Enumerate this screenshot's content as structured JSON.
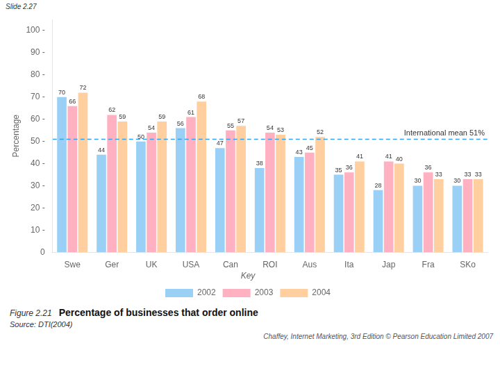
{
  "chart_data": {
    "type": "bar",
    "title": "Percentage of businesses that order online",
    "figure_label": "Figure 2.21",
    "source": "Source: DTI(2004)",
    "slide_label": "Slide 2.27",
    "footer": "Chaffey, Internet Marketing, 3rd Edition © Pearson Education Limited 2007",
    "categories": [
      "Swe",
      "Ger",
      "UK",
      "USA",
      "Can",
      "ROI",
      "Aus",
      "Ita",
      "Jap",
      "Fra",
      "SKo"
    ],
    "series": [
      {
        "name": "2002",
        "values": [
          70,
          44,
          50,
          56,
          47,
          38,
          43,
          35,
          28,
          30,
          30
        ]
      },
      {
        "name": "2003",
        "values": [
          66,
          62,
          54,
          61,
          55,
          54,
          45,
          36,
          41,
          36,
          33
        ]
      },
      {
        "name": "2004",
        "values": [
          72,
          59,
          59,
          68,
          57,
          53,
          52,
          41,
          40,
          33,
          33
        ]
      }
    ],
    "ylabel": "Percentage",
    "ylim": [
      0,
      105
    ],
    "yticks": [
      0,
      {
        "value": 10,
        "label": "10 -"
      },
      {
        "value": 20,
        "label": "20 -"
      },
      {
        "value": 30,
        "label": "30 -"
      },
      {
        "value": 40,
        "label": "40 -"
      },
      {
        "value": 50,
        "label": "50 -"
      },
      {
        "value": 60,
        "label": "60 -"
      },
      {
        "value": 70,
        "label": "70 -"
      },
      {
        "value": 80,
        "label": "80 -"
      },
      {
        "value": 90,
        "label": "90 -"
      },
      {
        "value": 100,
        "label": "100 -"
      }
    ],
    "grid": false,
    "legend": "bottom",
    "legend_title": "Key",
    "data_labels": true,
    "annotations": [
      {
        "type": "hline",
        "y": 51,
        "label": "International mean 51%",
        "line_style": "dashed"
      }
    ]
  }
}
